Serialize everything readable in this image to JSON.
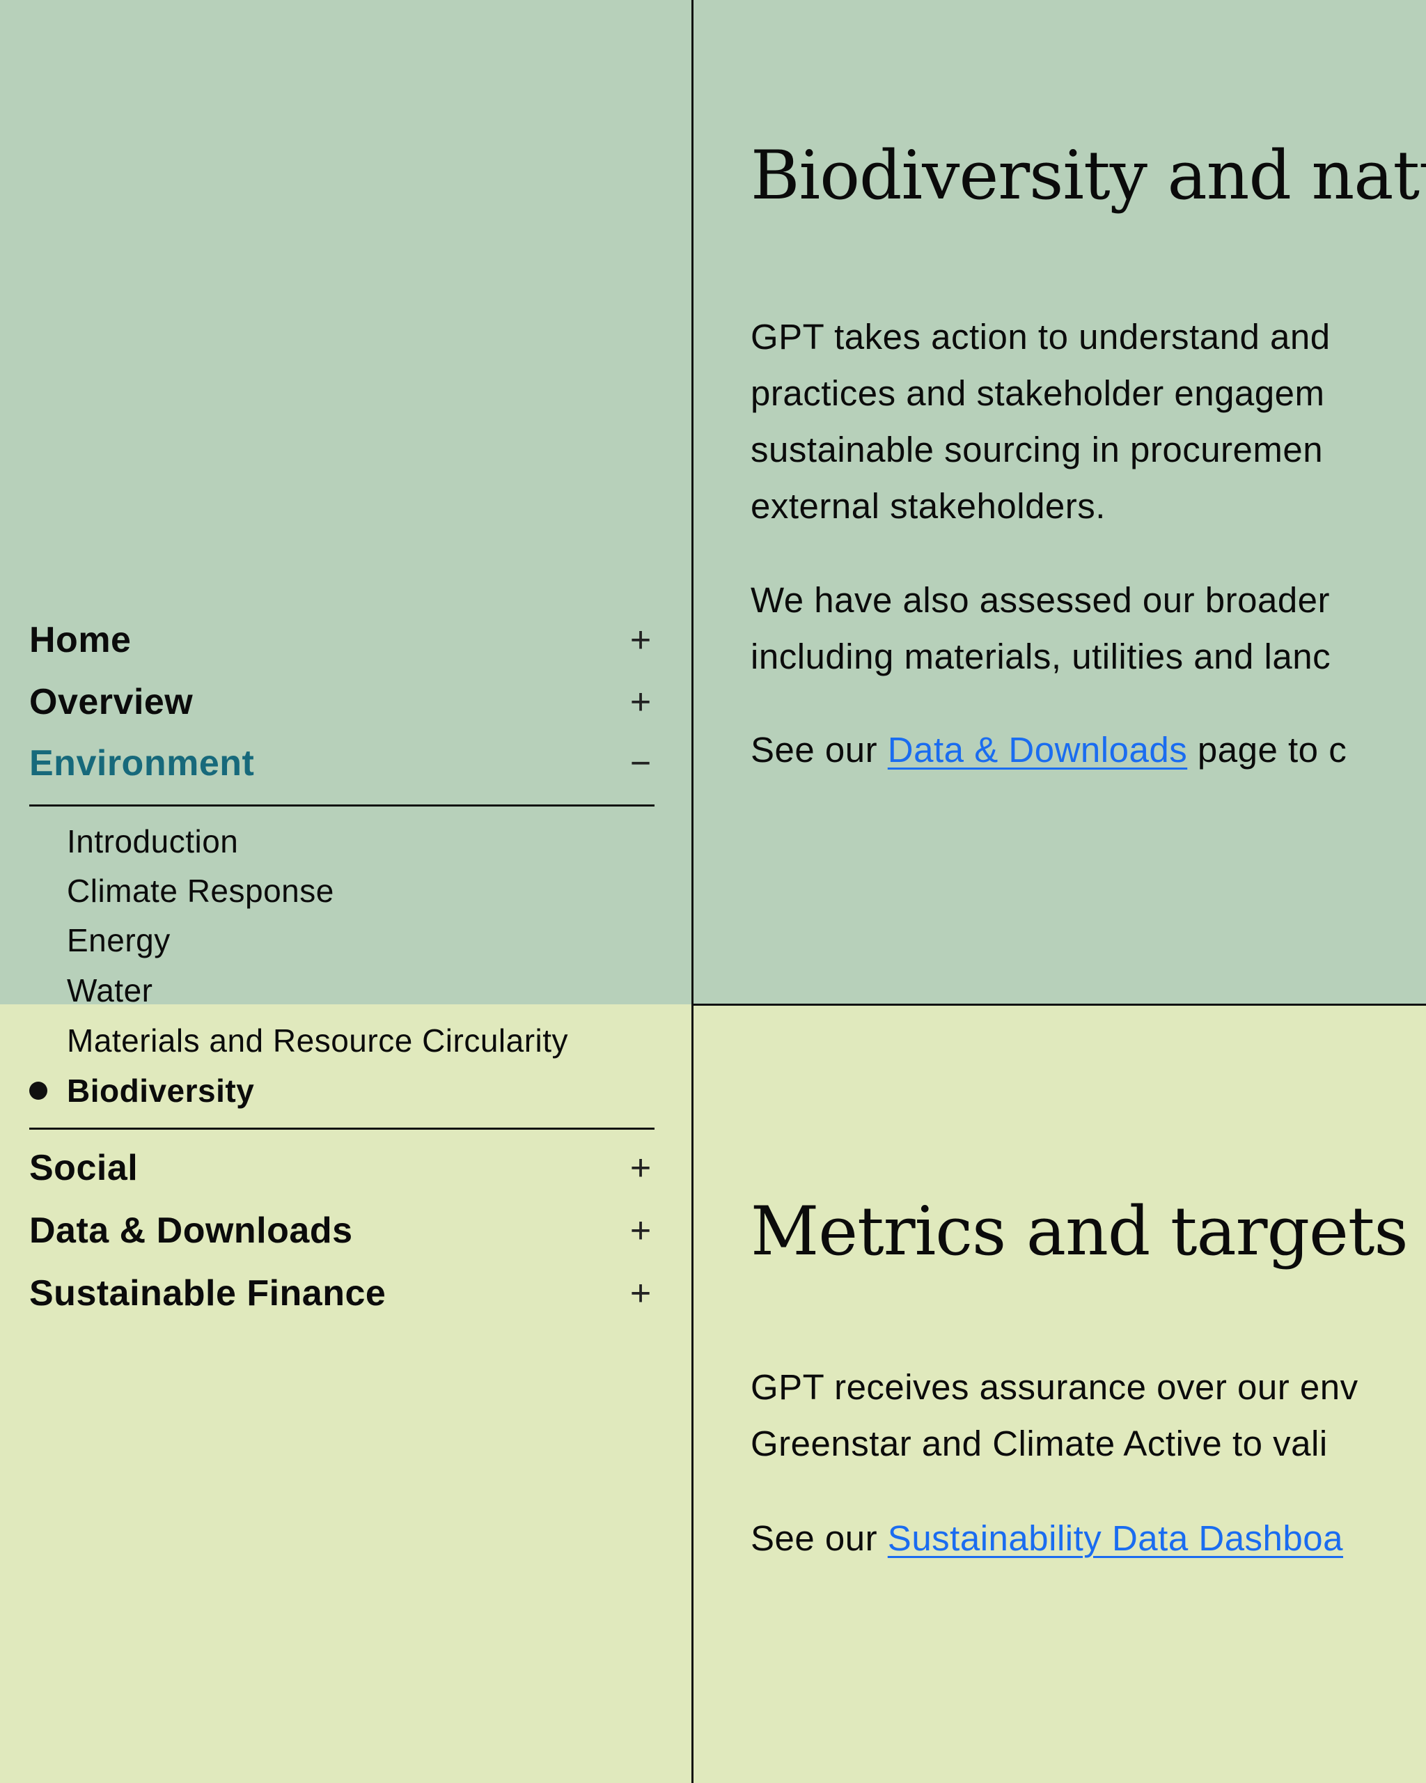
{
  "nav": {
    "items": [
      {
        "label": "Home",
        "icon": "plus-icon",
        "symbol": "+"
      },
      {
        "label": "Overview",
        "icon": "plus-icon",
        "symbol": "+"
      },
      {
        "label": "Environment",
        "icon": "minus-icon",
        "symbol": "−",
        "active": true
      },
      {
        "label": "Social",
        "icon": "plus-icon",
        "symbol": "+"
      },
      {
        "label": "Data & Downloads",
        "icon": "plus-icon",
        "symbol": "+"
      },
      {
        "label": "Sustainable Finance",
        "icon": "plus-icon",
        "symbol": "+"
      }
    ],
    "environment_sub": [
      "Introduction",
      "Climate Response",
      "Energy",
      "Water",
      "Materials and Resource Circularity",
      "Biodiversity"
    ],
    "current": "Biodiversity"
  },
  "colors": {
    "top_bg": "#b7d0ba",
    "bottom_bg": "#e0e9bd",
    "active_nav": "#17697b",
    "link": "#1a6cf0"
  },
  "section1": {
    "title": "Biodiversity and natu",
    "para1": [
      "GPT takes action to understand and",
      "practices and stakeholder engagem",
      "sustainable sourcing in procuremen",
      "external stakeholders."
    ],
    "para2": [
      "We have also assessed our broader",
      "including materials, utilities and lanc"
    ],
    "para3_prefix": "See our ",
    "para3_link": "Data & Downloads",
    "para3_suffix": " page to c"
  },
  "section2": {
    "title": "Metrics and targets",
    "para1": [
      "GPT receives assurance over our env",
      "Greenstar and Climate Active to vali"
    ],
    "para2_prefix": "See our ",
    "para2_link": "Sustainability Data Dashboa"
  }
}
